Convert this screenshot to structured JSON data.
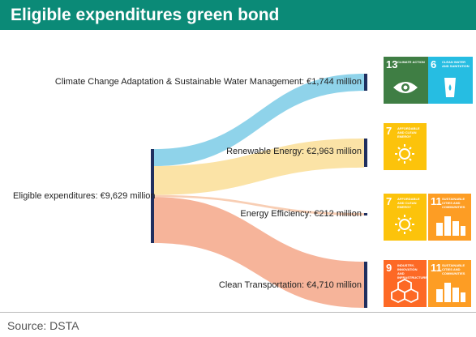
{
  "header": {
    "title": "Eligible expenditures green bond"
  },
  "source": "Source: DSTA",
  "sankey": {
    "source_label": "Eligible expenditures: €9,629 million",
    "flows": [
      {
        "label": "Climate Change Adaptation & Sustainable Water Management: €1,744 million",
        "value": 1744,
        "color": "#8fd3ea"
      },
      {
        "label": "Renewable Energy: €2,963 million",
        "value": 2963,
        "color": "#fbe3a6"
      },
      {
        "label": "Energy Efficiency: €212 million",
        "value": 212,
        "color": "#f8ceb4"
      },
      {
        "label": "Clean Transportation: €4,710 million",
        "value": 4710,
        "color": "#f6b49a"
      }
    ],
    "total": 9629
  },
  "sdg_tiles": [
    {
      "number": "13",
      "caption": "Climate action",
      "color": "#3f7e44",
      "icon": "eye-earth-icon"
    },
    {
      "number": "6",
      "caption": "Clean water and sanitation",
      "color": "#26bde2",
      "icon": "water-glass-icon"
    },
    {
      "number": "7",
      "caption": "Affordable and clean energy",
      "color": "#fcc30b",
      "icon": "sun-power-icon"
    },
    {
      "number": "7",
      "caption": "Affordable and clean energy",
      "color": "#fcc30b",
      "icon": "sun-power-icon"
    },
    {
      "number": "11",
      "caption": "Sustainable cities and communities",
      "color": "#fd9d24",
      "icon": "city-icon"
    },
    {
      "number": "9",
      "caption": "Industry, innovation and infrastructure",
      "color": "#fd6925",
      "icon": "cubes-icon"
    },
    {
      "number": "11",
      "caption": "Sustainable cities and communities",
      "color": "#fd9d24",
      "icon": "city-icon"
    }
  ]
}
